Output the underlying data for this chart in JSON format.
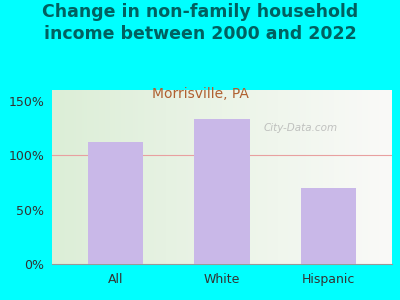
{
  "title": "Change in non-family household\nincome between 2000 and 2022",
  "subtitle": "Morrisville, PA",
  "categories": [
    "All",
    "White",
    "Hispanic"
  ],
  "values": [
    112,
    133,
    70
  ],
  "bar_color": "#c9b8e8",
  "title_color": "#006060",
  "subtitle_color": "#b06030",
  "background_outer": "#00ffff",
  "ylim": [
    0,
    160
  ],
  "yticks": [
    0,
    50,
    100,
    150
  ],
  "ytick_labels": [
    "0%",
    "50%",
    "100%",
    "150%"
  ],
  "watermark": "City-Data.com",
  "grid_color": "#e8a0a0",
  "title_fontsize": 12.5,
  "subtitle_fontsize": 10,
  "tick_fontsize": 9
}
